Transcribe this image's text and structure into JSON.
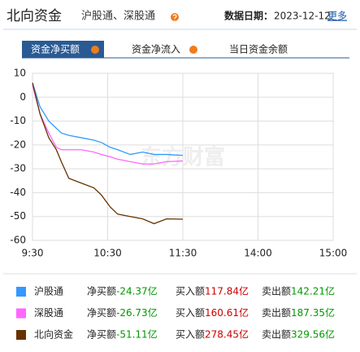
{
  "header": {
    "title": "北向资金",
    "subtitle": "沪股通、深股通",
    "date_label": "数据日期：",
    "date": "2023-12-12",
    "more": "更多"
  },
  "tabs": [
    "资金净买额",
    "资金净流入",
    "当日资金余额"
  ],
  "chart_data": {
    "type": "line",
    "watermark": "东方财富",
    "x": [
      0,
      6,
      13,
      19,
      23,
      29,
      39,
      49,
      55,
      62,
      68,
      78,
      88,
      97,
      107,
      120
    ],
    "xlim": [
      0,
      240
    ],
    "xticks": [
      {
        "value": 0,
        "label": "9:30"
      },
      {
        "value": 60,
        "label": "10:30"
      },
      {
        "value": 120,
        "label": "11:30"
      },
      {
        "value": 180,
        "label": "14:00"
      },
      {
        "value": 240,
        "label": "15:00"
      }
    ],
    "ylim": [
      -60,
      10
    ],
    "yticks": [
      10,
      0,
      -10,
      -20,
      -30,
      -40,
      -50,
      -60
    ],
    "grid": true,
    "series": [
      {
        "name": "沪股通",
        "color": "#3399ff",
        "values": [
          6,
          -4,
          -10,
          -13,
          -15,
          -16,
          -17,
          -18,
          -19,
          -21,
          -22,
          -24,
          -23,
          -24,
          -24,
          -24.37
        ]
      },
      {
        "name": "深股通",
        "color": "#ff66ff",
        "values": [
          5,
          -7,
          -15,
          -21,
          -22,
          -22,
          -22,
          -23,
          -24,
          -25,
          -26,
          -27,
          -28,
          -28,
          -27,
          -26.73
        ]
      },
      {
        "name": "北向资金",
        "color": "#663300",
        "values": [
          6,
          -7,
          -17,
          -22,
          -27,
          -34,
          -36,
          -38,
          -41,
          -46,
          -49,
          -50,
          -51,
          -53,
          -51,
          -51.11
        ]
      }
    ],
    "summary": [
      {
        "net_label": "净买额",
        "net": "-24.37亿",
        "buy_label": "买入额",
        "buy": "117.84亿",
        "sell_label": "卖出额",
        "sell": "142.21亿"
      },
      {
        "net_label": "净买额",
        "net": "-26.73亿",
        "buy_label": "买入额",
        "buy": "160.61亿",
        "sell_label": "卖出额",
        "sell": "187.35亿"
      },
      {
        "net_label": "净买额",
        "net": "-51.11亿",
        "buy_label": "买入额",
        "buy": "278.45亿",
        "sell_label": "卖出额",
        "sell": "329.56亿"
      }
    ]
  }
}
